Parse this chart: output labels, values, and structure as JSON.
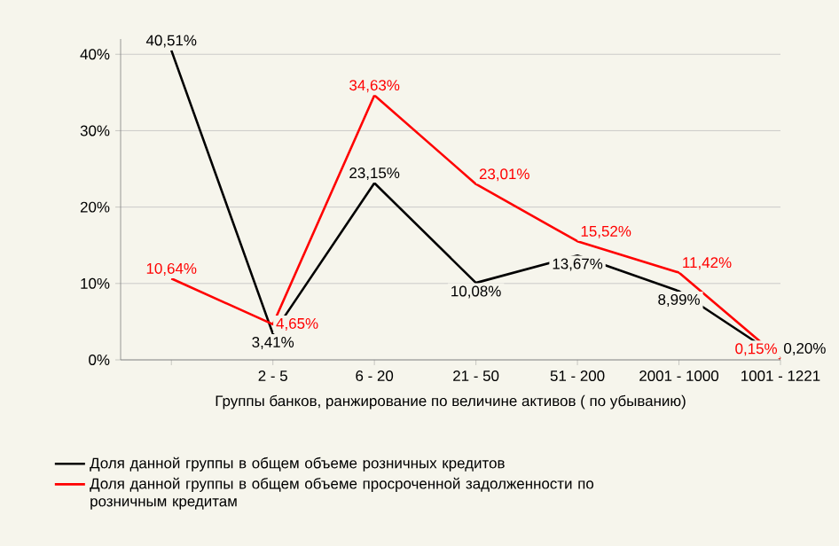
{
  "chart_data": {
    "type": "line",
    "xlabel": "Группы банков, ранжирование по величине активов ( по убыванию)",
    "categories": [
      null,
      "2 - 5",
      "6 - 20",
      "21 - 50",
      "51 - 200",
      "2001 - 1000",
      "1001 - 1221"
    ],
    "series": [
      {
        "name": "Доля данной группы в общем объеме розничных кредитов",
        "color": "#000000",
        "values": [
          40.51,
          3.41,
          23.15,
          10.08,
          13.67,
          8.99,
          0.2
        ],
        "value_labels": [
          "40,51%",
          "3,41%",
          "23,15%",
          "10,08%",
          "13,67%",
          "8,99%",
          "0,20%"
        ]
      },
      {
        "name": "Доля данной группы в общем объеме просроченной задолженности по розничным кредитам",
        "color": "#ff0000",
        "values": [
          10.64,
          4.65,
          34.63,
          23.01,
          15.52,
          11.42,
          0.15
        ],
        "value_labels": [
          "10,64%",
          "4,65%",
          "34,63%",
          "23,01%",
          "15,52%",
          "11,42%",
          "0,15%"
        ]
      }
    ],
    "ylim": [
      0,
      42
    ],
    "yticks": [
      {
        "value": 0,
        "label": "0%"
      },
      {
        "value": 10,
        "label": "10%"
      },
      {
        "value": 20,
        "label": "20%"
      },
      {
        "value": 30,
        "label": "30%"
      },
      {
        "value": 40,
        "label": "40%"
      }
    ],
    "grid": "y",
    "legend": "bottom left",
    "marker": "none",
    "line_style": "solid"
  }
}
